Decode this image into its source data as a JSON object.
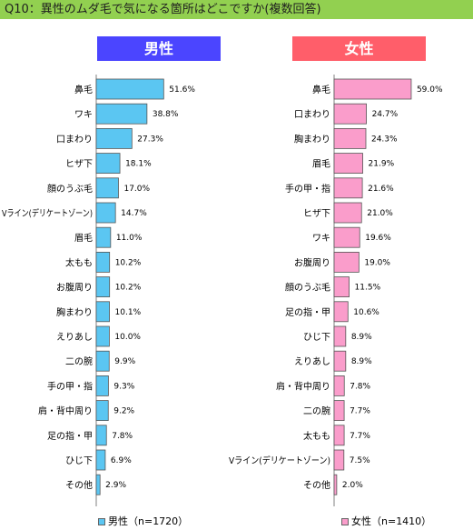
{
  "title": "Q10：異性のムダ毛で気になる箇所はどこですか(複数回答)",
  "colors": {
    "male_bar": "#5bc6f2",
    "female_bar": "#fa9dcb",
    "bar_border": "#555555",
    "title_bg": "#92d050"
  },
  "legend": {
    "male": "男性（n=1720）",
    "female": "女性（n=1410）"
  },
  "chart_data": [
    {
      "type": "bar",
      "orientation": "horizontal",
      "title": "男性",
      "categories": [
        "鼻毛",
        "ワキ",
        "口まわり",
        "ヒザ下",
        "顔のうぶ毛",
        "Vライン(デリケートゾーン)",
        "眉毛",
        "太もも",
        "お腹周り",
        "胸まわり",
        "えりあし",
        "二の腕",
        "手の甲・指",
        "肩・背中周り",
        "足の指・甲",
        "ひじ下",
        "その他"
      ],
      "values": [
        51.6,
        38.8,
        27.3,
        18.1,
        17.0,
        14.7,
        11.0,
        10.2,
        10.2,
        10.1,
        10.0,
        9.9,
        9.3,
        9.2,
        7.8,
        6.9,
        2.9
      ],
      "value_labels": [
        "51.6%",
        "38.8%",
        "27.3%",
        "18.1%",
        "17.0%",
        "14.7%",
        "11.0%",
        "10.2%",
        "10.2%",
        "10.1%",
        "10.0%",
        "9.9%",
        "9.3%",
        "9.2%",
        "7.8%",
        "6.9%",
        "2.9%"
      ],
      "xlim": [
        0,
        100
      ],
      "grid": false
    },
    {
      "type": "bar",
      "orientation": "horizontal",
      "title": "女性",
      "categories": [
        "鼻毛",
        "口まわり",
        "胸まわり",
        "眉毛",
        "手の甲・指",
        "ヒザ下",
        "ワキ",
        "お腹周り",
        "顔のうぶ毛",
        "足の指・甲",
        "ひじ下",
        "えりあし",
        "肩・背中周り",
        "二の腕",
        "太もも",
        "Vライン(デリケートゾーン)",
        "その他"
      ],
      "values": [
        59.0,
        24.7,
        24.3,
        21.9,
        21.6,
        21.0,
        19.6,
        19.0,
        11.5,
        10.6,
        8.9,
        8.9,
        7.8,
        7.7,
        7.7,
        7.5,
        2.0
      ],
      "value_labels": [
        "59.0%",
        "24.7%",
        "24.3%",
        "21.9%",
        "21.6%",
        "21.0%",
        "19.6%",
        "19.0%",
        "11.5%",
        "10.6%",
        "8.9%",
        "8.9%",
        "7.8%",
        "7.7%",
        "7.7%",
        "7.5%",
        "2.0%"
      ],
      "xlim": [
        0,
        100
      ],
      "grid": false
    }
  ]
}
